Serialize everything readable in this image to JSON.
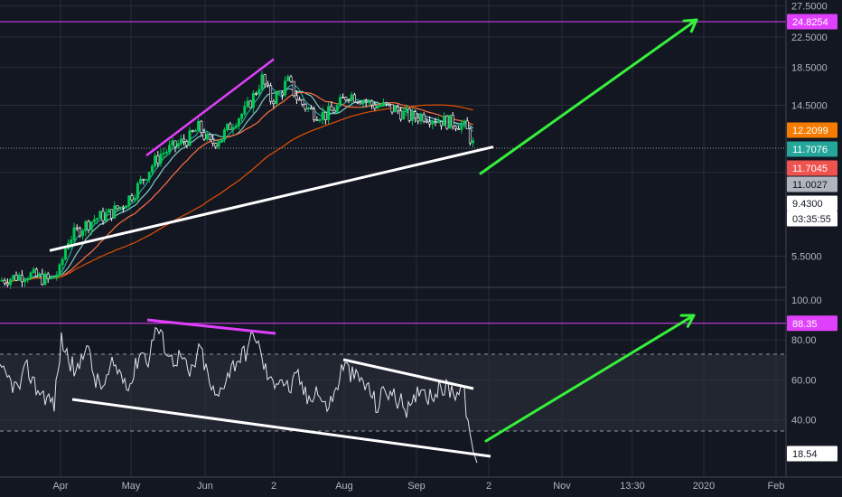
{
  "chart_data": [
    {
      "type": "candlestick",
      "panel": "price",
      "y_axis_ticks": [
        "27.5000",
        "22.5000",
        "18.5000",
        "14.5000",
        "9.4300",
        "5.5000"
      ],
      "ylim": [
        4.5,
        28.2
      ],
      "y_scale": "log",
      "price_labels": [
        {
          "text": "24.8254",
          "value": 24.8254,
          "bg": "#e040fb",
          "fg": "#ffffff",
          "role": "horizontal-line"
        },
        {
          "text": "12.2099",
          "value": 12.2099,
          "bg": "#f57c00",
          "fg": "#ffffff",
          "role": "ma-long"
        },
        {
          "text": "11.7076",
          "value": 11.7076,
          "bg": "#26a69a",
          "fg": "#ffffff",
          "role": "ma-short"
        },
        {
          "text": "11.7045",
          "value": 11.7045,
          "bg": "#ef5350",
          "fg": "#ffffff",
          "role": "ma-mid"
        },
        {
          "text": "11.0027",
          "value": 11.0027,
          "bg": "#b2b5be",
          "fg": "#131722",
          "role": "last-price"
        },
        {
          "text": "9.4300",
          "value": 9.43,
          "bg": "#ffffff",
          "fg": "#131722",
          "role": "crosshair"
        },
        {
          "text": "03:35:55",
          "value": 8.2,
          "bg": "#ffffff",
          "fg": "#131722",
          "role": "countdown"
        }
      ],
      "horizontal_line": 24.8254,
      "trendline_support": {
        "from": [
          "Mar 26",
          5.7
        ],
        "to": [
          "Sep 30",
          11.1
        ]
      },
      "trendline_divergence": {
        "from": [
          "May 8",
          10.5
        ],
        "to": [
          "Jun 3",
          19.5
        ]
      },
      "arrow_target": 24.8254
    },
    {
      "type": "line",
      "panel": "rsi",
      "y_axis_ticks": [
        "100.00",
        "80.00",
        "60.00",
        "40.00"
      ],
      "ylim": [
        5,
        100
      ],
      "bands": [
        30,
        70
      ],
      "horizontal_line": 88.35,
      "labels": [
        {
          "text": "88.35",
          "value": 88.35,
          "bg": "#e040fb",
          "fg": "#ffffff"
        },
        {
          "text": "18.54",
          "value": 18.54,
          "bg": "#ffffff",
          "fg": "#131722"
        }
      ],
      "last_value": 18.54
    }
  ],
  "x_axis_ticks": [
    "Apr",
    "May",
    "Jun",
    "2",
    "Aug",
    "Sep",
    "2",
    "Nov",
    "13:30",
    "2020",
    "Feb"
  ],
  "colors": {
    "background": "#131722",
    "grid": "#2a2e39",
    "up": "#26a69a",
    "green_candle": "#00c853",
    "magenta": "#e040fb",
    "arrow": "#35f03a",
    "white_line": "#ffffff",
    "ma_fast": "#26a69a",
    "ma_mid": "#ef5350",
    "ma_slow": "#ff7043",
    "ma_long": "#e65100"
  }
}
